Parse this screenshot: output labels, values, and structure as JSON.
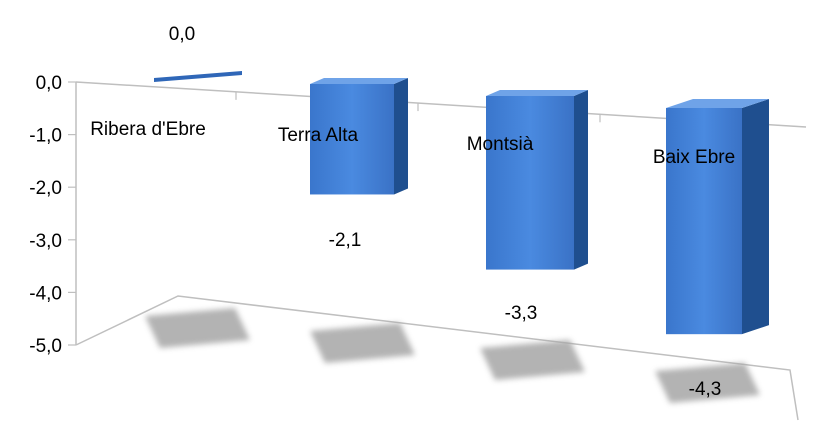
{
  "chart_data": {
    "type": "bar",
    "title": "",
    "xlabel": "",
    "ylabel": "",
    "categories": [
      "Ribera d'Ebre",
      "Terra Alta",
      "Montsià",
      "Baix Ebre"
    ],
    "values": [
      0.0,
      -2.1,
      -3.3,
      -4.3
    ],
    "value_labels": [
      "0,0",
      "-2,1",
      "-3,3",
      "-4,3"
    ],
    "ylim": [
      -5.0,
      0.0
    ],
    "yticks": [
      0.0,
      -1.0,
      -2.0,
      -3.0,
      -4.0,
      -5.0
    ],
    "ytick_labels": [
      "0,0",
      "-1,0",
      "-2,0",
      "-3,0",
      "-4,0",
      "-5,0"
    ],
    "grid": false,
    "legend": "none",
    "style": "3d-column",
    "colors": {
      "bar_front": "#3f7fd6",
      "bar_side": "#1f4f8f",
      "bar_top": "#6fa3e8",
      "axis": "#bfbfbf",
      "shadow": "#a6a6a6"
    }
  }
}
